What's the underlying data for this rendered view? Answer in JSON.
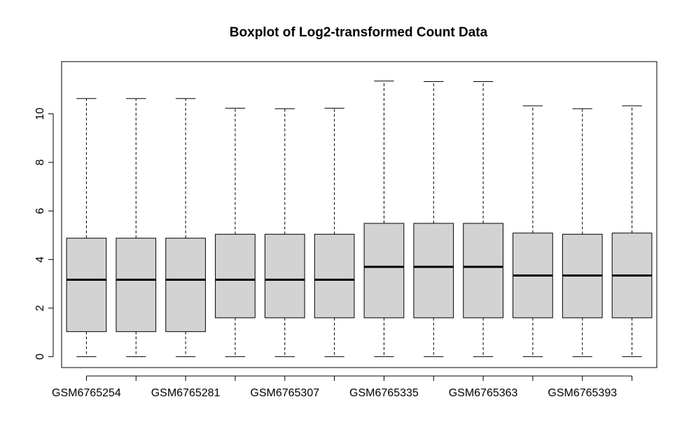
{
  "chart_data": {
    "type": "boxplot",
    "title": "Boxplot of Log2-transformed Count Data",
    "xlabel": "",
    "ylabel": "",
    "ylim": [
      -0.45,
      12.15
    ],
    "yticks": [
      0,
      2,
      4,
      6,
      8,
      10
    ],
    "grid": false,
    "colors": {
      "box_fill": "#d3d3d3",
      "stroke": "#000000"
    },
    "x_tick_labels": [
      "GSM6765254",
      "GSM6765281",
      "GSM6765307",
      "GSM6765335",
      "GSM6765363",
      "GSM6765393"
    ],
    "x_tick_positions": [
      1,
      3,
      5,
      7,
      9,
      11
    ],
    "boxes": [
      {
        "position": 1,
        "min": 0,
        "q1": 1.03,
        "median": 3.17,
        "q3": 4.88,
        "max": 10.63
      },
      {
        "position": 2,
        "min": 0,
        "q1": 1.03,
        "median": 3.17,
        "q3": 4.88,
        "max": 10.63
      },
      {
        "position": 3,
        "min": 0,
        "q1": 1.03,
        "median": 3.17,
        "q3": 4.88,
        "max": 10.63
      },
      {
        "position": 4,
        "min": 0,
        "q1": 1.6,
        "median": 3.17,
        "q3": 5.04,
        "max": 10.23
      },
      {
        "position": 5,
        "min": 0,
        "q1": 1.6,
        "median": 3.17,
        "q3": 5.04,
        "max": 10.21
      },
      {
        "position": 6,
        "min": 0,
        "q1": 1.6,
        "median": 3.17,
        "q3": 5.04,
        "max": 10.23
      },
      {
        "position": 7,
        "min": 0,
        "q1": 1.6,
        "median": 3.7,
        "q3": 5.49,
        "max": 11.35
      },
      {
        "position": 8,
        "min": 0,
        "q1": 1.6,
        "median": 3.7,
        "q3": 5.49,
        "max": 11.33
      },
      {
        "position": 9,
        "min": 0,
        "q1": 1.6,
        "median": 3.7,
        "q3": 5.49,
        "max": 11.33
      },
      {
        "position": 10,
        "min": 0,
        "q1": 1.6,
        "median": 3.34,
        "q3": 5.09,
        "max": 10.33
      },
      {
        "position": 11,
        "min": 0,
        "q1": 1.6,
        "median": 3.34,
        "q3": 5.04,
        "max": 10.21
      },
      {
        "position": 12,
        "min": 0,
        "q1": 1.6,
        "median": 3.34,
        "q3": 5.09,
        "max": 10.33
      }
    ]
  }
}
